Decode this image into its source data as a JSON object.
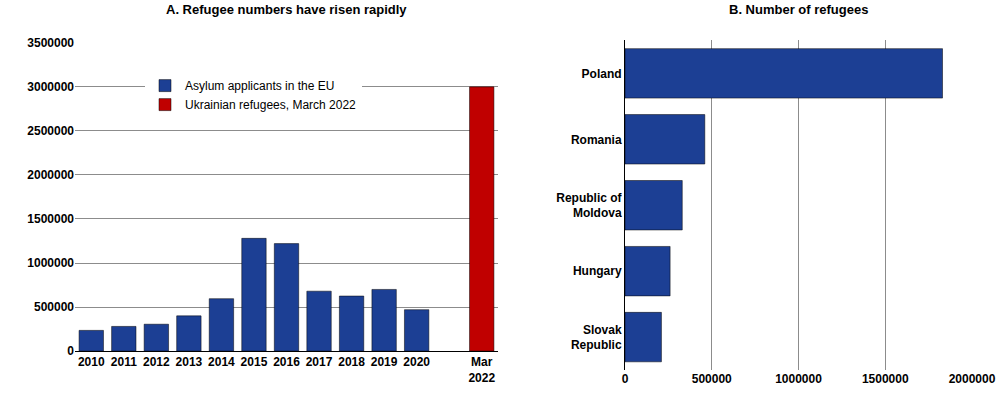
{
  "chart_data": [
    {
      "type": "bar",
      "title": "A. Refugee numbers have risen rapidly",
      "categories": [
        "2010",
        "2011",
        "2012",
        "2013",
        "2014",
        "2015",
        "2016",
        "2017",
        "2018",
        "2019",
        "2020",
        null,
        "Mar\n2022"
      ],
      "series": [
        {
          "name": "Asylum applicants in the EU",
          "color": "#1c3f94",
          "values": [
            235000,
            280000,
            305000,
            400000,
            595000,
            1280000,
            1220000,
            680000,
            625000,
            700000,
            470000,
            null,
            null
          ]
        },
        {
          "name": "Ukrainian refugees, March 2022",
          "color": "#c00000",
          "values": [
            null,
            null,
            null,
            null,
            null,
            null,
            null,
            null,
            null,
            null,
            null,
            null,
            3000000
          ]
        }
      ],
      "ylim": [
        0,
        3500000
      ],
      "yticks": [
        0,
        500000,
        1000000,
        1500000,
        2000000,
        2500000,
        3000000,
        3500000
      ],
      "grid": true,
      "legend": "top left"
    },
    {
      "type": "bar",
      "title": "B. Number of refugees",
      "orientation": "horizontal",
      "categories": [
        "Poland",
        "Romania",
        "Republic of\nMoldova",
        "Hungary",
        "Slovak\nRepublic"
      ],
      "values": [
        1830000,
        460000,
        330000,
        260000,
        210000
      ],
      "color": "#1c3f94",
      "xlim": [
        0,
        2000000
      ],
      "xticks": [
        0,
        500000,
        1000000,
        1500000,
        2000000
      ],
      "grid": true
    }
  ]
}
